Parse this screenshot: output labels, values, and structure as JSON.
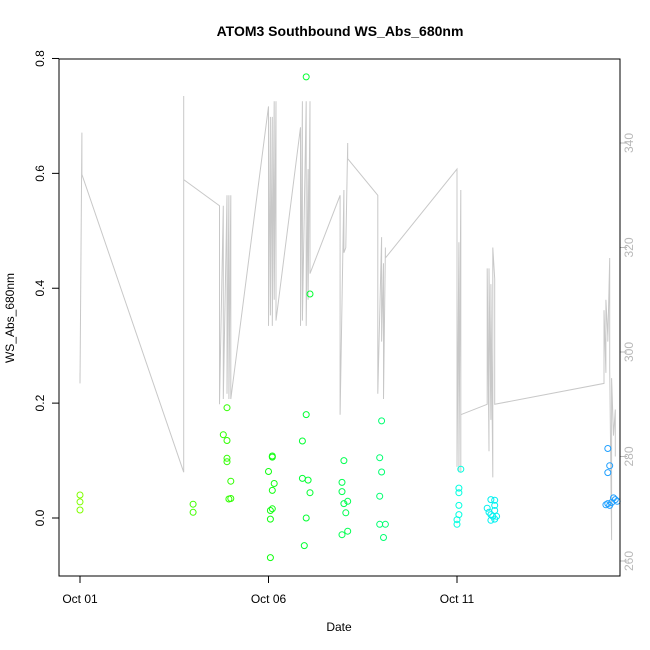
{
  "chart_data": {
    "type": "scatter",
    "title": "ATOM3 Southbound WS_Abs_680nm",
    "xlabel": "Date",
    "ylabel": "WS_Abs_680nm",
    "x_unit": "date (October)",
    "xlim": [
      0.85,
      16.6
    ],
    "ylim": [
      -0.1,
      0.8
    ],
    "x_ticks": [
      1,
      6,
      11
    ],
    "x_tick_labels": [
      "Oct 01",
      "Oct 06",
      "Oct 11"
    ],
    "y_ticks": [
      0.0,
      0.2,
      0.4,
      0.6,
      0.8
    ],
    "y_tick_labels": [
      "0.0",
      "0.2",
      "0.4",
      "0.6",
      "0.8"
    ],
    "y2_ticks": [
      260,
      280,
      300,
      320,
      340
    ],
    "y2_tick_labels": [
      "260",
      "280",
      "300",
      "320",
      "340"
    ],
    "y2lim": [
      258.5,
      358
    ],
    "grid": false,
    "legend": "none",
    "points_style": "open circles colored by date (green to blue)",
    "points": [
      {
        "x": 1.0,
        "y": 0.04,
        "color": "#80ff00"
      },
      {
        "x": 1.0,
        "y": 0.028,
        "color": "#80ff00"
      },
      {
        "x": 1.0,
        "y": 0.014,
        "color": "#80ff00"
      },
      {
        "x": 4.0,
        "y": 0.024,
        "color": "#40ff00"
      },
      {
        "x": 4.0,
        "y": 0.01,
        "color": "#40ff00"
      },
      {
        "x": 4.8,
        "y": 0.145,
        "color": "#30ff00"
      },
      {
        "x": 4.9,
        "y": 0.192,
        "color": "#30ff00"
      },
      {
        "x": 4.9,
        "y": 0.135,
        "color": "#30ff00"
      },
      {
        "x": 4.9,
        "y": 0.104,
        "color": "#30ff00"
      },
      {
        "x": 4.9,
        "y": 0.098,
        "color": "#30ff00"
      },
      {
        "x": 5.0,
        "y": 0.064,
        "color": "#30ff00"
      },
      {
        "x": 5.0,
        "y": 0.034,
        "color": "#30ff00"
      },
      {
        "x": 4.95,
        "y": 0.033,
        "color": "#30ff00"
      },
      {
        "x": 6.0,
        "y": 0.081,
        "color": "#10ff10"
      },
      {
        "x": 6.1,
        "y": 0.108,
        "color": "#10ff10"
      },
      {
        "x": 6.1,
        "y": 0.106,
        "color": "#10ff10"
      },
      {
        "x": 6.15,
        "y": 0.06,
        "color": "#10ff10"
      },
      {
        "x": 6.1,
        "y": 0.048,
        "color": "#10ff10"
      },
      {
        "x": 6.1,
        "y": 0.016,
        "color": "#10ff10"
      },
      {
        "x": 6.05,
        "y": 0.013,
        "color": "#10ff10"
      },
      {
        "x": 6.05,
        "y": -0.002,
        "color": "#10ff10"
      },
      {
        "x": 6.05,
        "y": -0.069,
        "color": "#10ff10"
      },
      {
        "x": 7.0,
        "y": 0.768,
        "color": "#00ff30"
      },
      {
        "x": 7.1,
        "y": 0.39,
        "color": "#00ff30"
      },
      {
        "x": 7.0,
        "y": 0.18,
        "color": "#00ff30"
      },
      {
        "x": 6.9,
        "y": 0.134,
        "color": "#00ff30"
      },
      {
        "x": 6.9,
        "y": 0.069,
        "color": "#00ff30"
      },
      {
        "x": 7.05,
        "y": 0.066,
        "color": "#00ff30"
      },
      {
        "x": 7.1,
        "y": 0.044,
        "color": "#00ff30"
      },
      {
        "x": 7.0,
        "y": 0.0,
        "color": "#00ff30"
      },
      {
        "x": 6.95,
        "y": -0.048,
        "color": "#00ff30"
      },
      {
        "x": 8.0,
        "y": 0.1,
        "color": "#00ff50"
      },
      {
        "x": 7.95,
        "y": 0.062,
        "color": "#00ff50"
      },
      {
        "x": 7.95,
        "y": 0.046,
        "color": "#00ff50"
      },
      {
        "x": 8.1,
        "y": 0.029,
        "color": "#00ff50"
      },
      {
        "x": 8.0,
        "y": 0.025,
        "color": "#00ff50"
      },
      {
        "x": 8.05,
        "y": 0.009,
        "color": "#00ff50"
      },
      {
        "x": 8.1,
        "y": -0.023,
        "color": "#00ff50"
      },
      {
        "x": 7.95,
        "y": -0.029,
        "color": "#00ff50"
      },
      {
        "x": 9.0,
        "y": 0.169,
        "color": "#00ff70"
      },
      {
        "x": 8.95,
        "y": 0.105,
        "color": "#00ff70"
      },
      {
        "x": 9.0,
        "y": 0.08,
        "color": "#00ff70"
      },
      {
        "x": 8.95,
        "y": 0.038,
        "color": "#00ff70"
      },
      {
        "x": 8.95,
        "y": -0.011,
        "color": "#00ff70"
      },
      {
        "x": 9.1,
        "y": -0.011,
        "color": "#00ff70"
      },
      {
        "x": 9.05,
        "y": -0.034,
        "color": "#00ff70"
      },
      {
        "x": 11.1,
        "y": 0.085,
        "color": "#00ffe0"
      },
      {
        "x": 11.05,
        "y": 0.052,
        "color": "#00ffe0"
      },
      {
        "x": 11.05,
        "y": 0.044,
        "color": "#00ffe0"
      },
      {
        "x": 11.05,
        "y": 0.022,
        "color": "#00ffe0"
      },
      {
        "x": 11.05,
        "y": 0.006,
        "color": "#00ffe0"
      },
      {
        "x": 11.0,
        "y": -0.003,
        "color": "#00ffe0"
      },
      {
        "x": 11.0,
        "y": -0.011,
        "color": "#00ffe0"
      },
      {
        "x": 11.9,
        "y": 0.032,
        "color": "#00f0f0"
      },
      {
        "x": 12.0,
        "y": 0.031,
        "color": "#00f0f0"
      },
      {
        "x": 12.0,
        "y": 0.022,
        "color": "#00f0f0"
      },
      {
        "x": 11.8,
        "y": 0.017,
        "color": "#00f0f0"
      },
      {
        "x": 12.0,
        "y": 0.013,
        "color": "#00f0f0"
      },
      {
        "x": 11.85,
        "y": 0.01,
        "color": "#00f0f0"
      },
      {
        "x": 11.9,
        "y": 0.006,
        "color": "#00f0f0"
      },
      {
        "x": 11.95,
        "y": 0.003,
        "color": "#00f0f0"
      },
      {
        "x": 12.05,
        "y": 0.003,
        "color": "#00f0f0"
      },
      {
        "x": 11.9,
        "y": -0.004,
        "color": "#00f0f0"
      },
      {
        "x": 12.0,
        "y": -0.002,
        "color": "#00f0f0"
      },
      {
        "x": 15.0,
        "y": 0.121,
        "color": "#20a0ff"
      },
      {
        "x": 15.05,
        "y": 0.091,
        "color": "#20a0ff"
      },
      {
        "x": 15.0,
        "y": 0.079,
        "color": "#20a0ff"
      },
      {
        "x": 15.15,
        "y": 0.035,
        "color": "#20a0ff"
      },
      {
        "x": 15.2,
        "y": 0.032,
        "color": "#20a0ff"
      },
      {
        "x": 15.25,
        "y": 0.029,
        "color": "#20a0ff"
      },
      {
        "x": 15.1,
        "y": 0.027,
        "color": "#20a0ff"
      },
      {
        "x": 15.0,
        "y": 0.025,
        "color": "#20a0ff"
      },
      {
        "x": 14.95,
        "y": 0.023,
        "color": "#20a0ff"
      },
      {
        "x": 15.05,
        "y": 0.022,
        "color": "#20a0ff"
      }
    ],
    "secondary_line": {
      "color": "#c8c8c8",
      "axis": "right",
      "points": [
        [
          1.0,
          296
        ],
        [
          1.0,
          294
        ],
        [
          1.05,
          342
        ],
        [
          1.05,
          334
        ],
        [
          3.75,
          277
        ],
        [
          3.75,
          278
        ],
        [
          3.75,
          349
        ],
        [
          3.75,
          333
        ],
        [
          4.7,
          328
        ],
        [
          4.7,
          290
        ],
        [
          4.8,
          328
        ],
        [
          4.8,
          291
        ],
        [
          4.9,
          330
        ],
        [
          4.9,
          292
        ],
        [
          4.95,
          330
        ],
        [
          4.95,
          291
        ],
        [
          5.0,
          330
        ],
        [
          5.0,
          291
        ],
        [
          6.0,
          347
        ],
        [
          6.0,
          305
        ],
        [
          6.05,
          345
        ],
        [
          6.05,
          307
        ],
        [
          6.1,
          345
        ],
        [
          6.1,
          305
        ],
        [
          6.15,
          348
        ],
        [
          6.15,
          310
        ],
        [
          6.2,
          348
        ],
        [
          6.2,
          306
        ],
        [
          6.85,
          343
        ],
        [
          6.85,
          305
        ],
        [
          6.9,
          348
        ],
        [
          6.9,
          306
        ],
        [
          7.0,
          348
        ],
        [
          7.0,
          305
        ],
        [
          7.05,
          335
        ],
        [
          7.05,
          310
        ],
        [
          7.1,
          348
        ],
        [
          7.1,
          315
        ],
        [
          7.9,
          330
        ],
        [
          7.9,
          288
        ],
        [
          8.0,
          331
        ],
        [
          8.0,
          319
        ],
        [
          8.05,
          320
        ],
        [
          8.1,
          340
        ],
        [
          8.1,
          337
        ],
        [
          8.9,
          330
        ],
        [
          8.9,
          292
        ],
        [
          9.0,
          322
        ],
        [
          9.0,
          302
        ],
        [
          9.05,
          317
        ],
        [
          9.05,
          291
        ],
        [
          9.1,
          320
        ],
        [
          9.1,
          318
        ],
        [
          11.0,
          335
        ],
        [
          11.0,
          278
        ],
        [
          11.05,
          321
        ],
        [
          11.05,
          277
        ],
        [
          11.1,
          331
        ],
        [
          11.1,
          277
        ],
        [
          11.1,
          288
        ],
        [
          11.8,
          290
        ],
        [
          11.8,
          316
        ],
        [
          11.85,
          281
        ],
        [
          11.85,
          316
        ],
        [
          11.9,
          287
        ],
        [
          11.9,
          313
        ],
        [
          11.95,
          276
        ],
        [
          11.95,
          320
        ],
        [
          12.0,
          314
        ],
        [
          12.0,
          290
        ],
        [
          14.9,
          294
        ],
        [
          14.9,
          308
        ],
        [
          14.95,
          296
        ],
        [
          14.95,
          310
        ],
        [
          15.0,
          303
        ],
        [
          15.0,
          302
        ],
        [
          15.05,
          318
        ],
        [
          15.05,
          297
        ],
        [
          15.1,
          264
        ],
        [
          15.1,
          295
        ],
        [
          15.15,
          284
        ],
        [
          15.2,
          289
        ],
        [
          15.2,
          280
        ]
      ]
    }
  }
}
